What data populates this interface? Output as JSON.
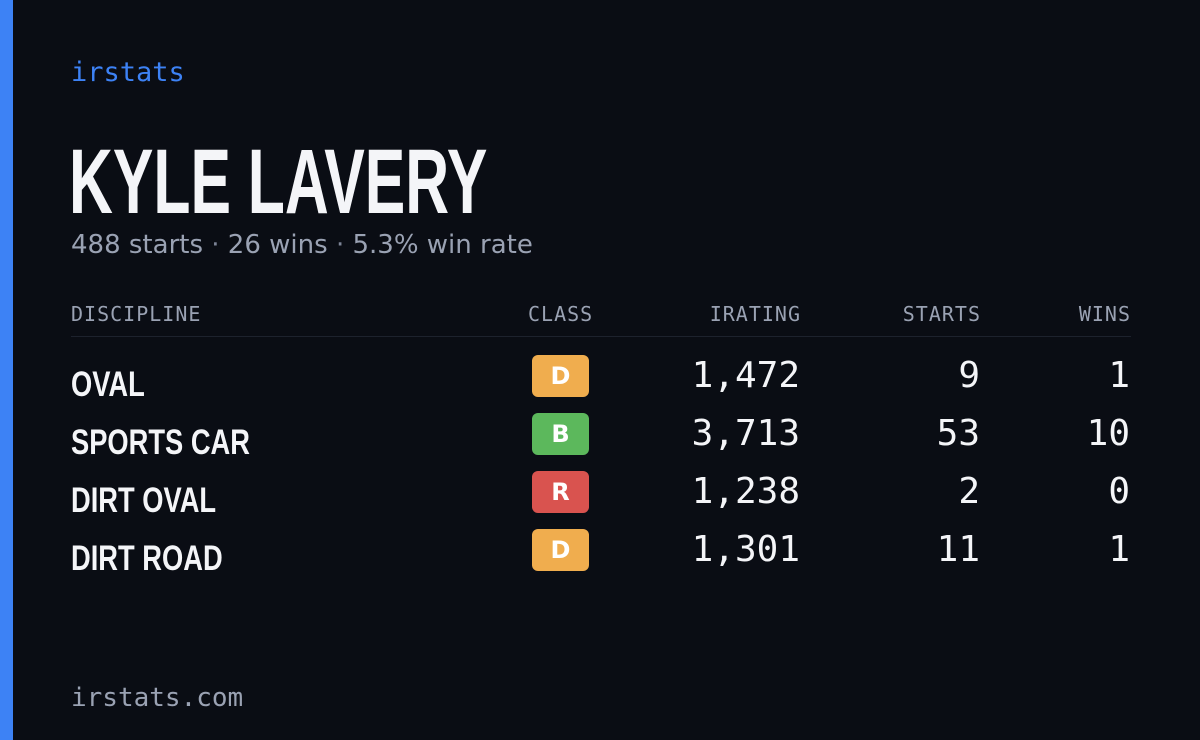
{
  "brand": "irstats",
  "driver": {
    "name": "KYLE LAVERY",
    "starts_text": "488 starts",
    "wins_text": "26 wins",
    "win_rate_text": "5.3% win rate",
    "separator": "·"
  },
  "table": {
    "headers": {
      "discipline": "DISCIPLINE",
      "class": "CLASS",
      "irating": "IRATING",
      "starts": "STARTS",
      "wins": "WINS"
    },
    "rows": [
      {
        "discipline": "OVAL",
        "class": "D",
        "class_color": "#f0ad4e",
        "irating": "1,472",
        "starts": "9",
        "wins": "1"
      },
      {
        "discipline": "SPORTS CAR",
        "class": "B",
        "class_color": "#5cb85c",
        "irating": "3,713",
        "starts": "53",
        "wins": "10"
      },
      {
        "discipline": "DIRT OVAL",
        "class": "R",
        "class_color": "#d9534f",
        "irating": "1,238",
        "starts": "2",
        "wins": "0"
      },
      {
        "discipline": "DIRT ROAD",
        "class": "D",
        "class_color": "#f0ad4e",
        "irating": "1,301",
        "starts": "11",
        "wins": "1"
      }
    ]
  },
  "footer": "irstats.com",
  "colors": {
    "background": "#0a0d14",
    "accent": "#3d82f5",
    "muted_text": "#9aa2b3"
  }
}
